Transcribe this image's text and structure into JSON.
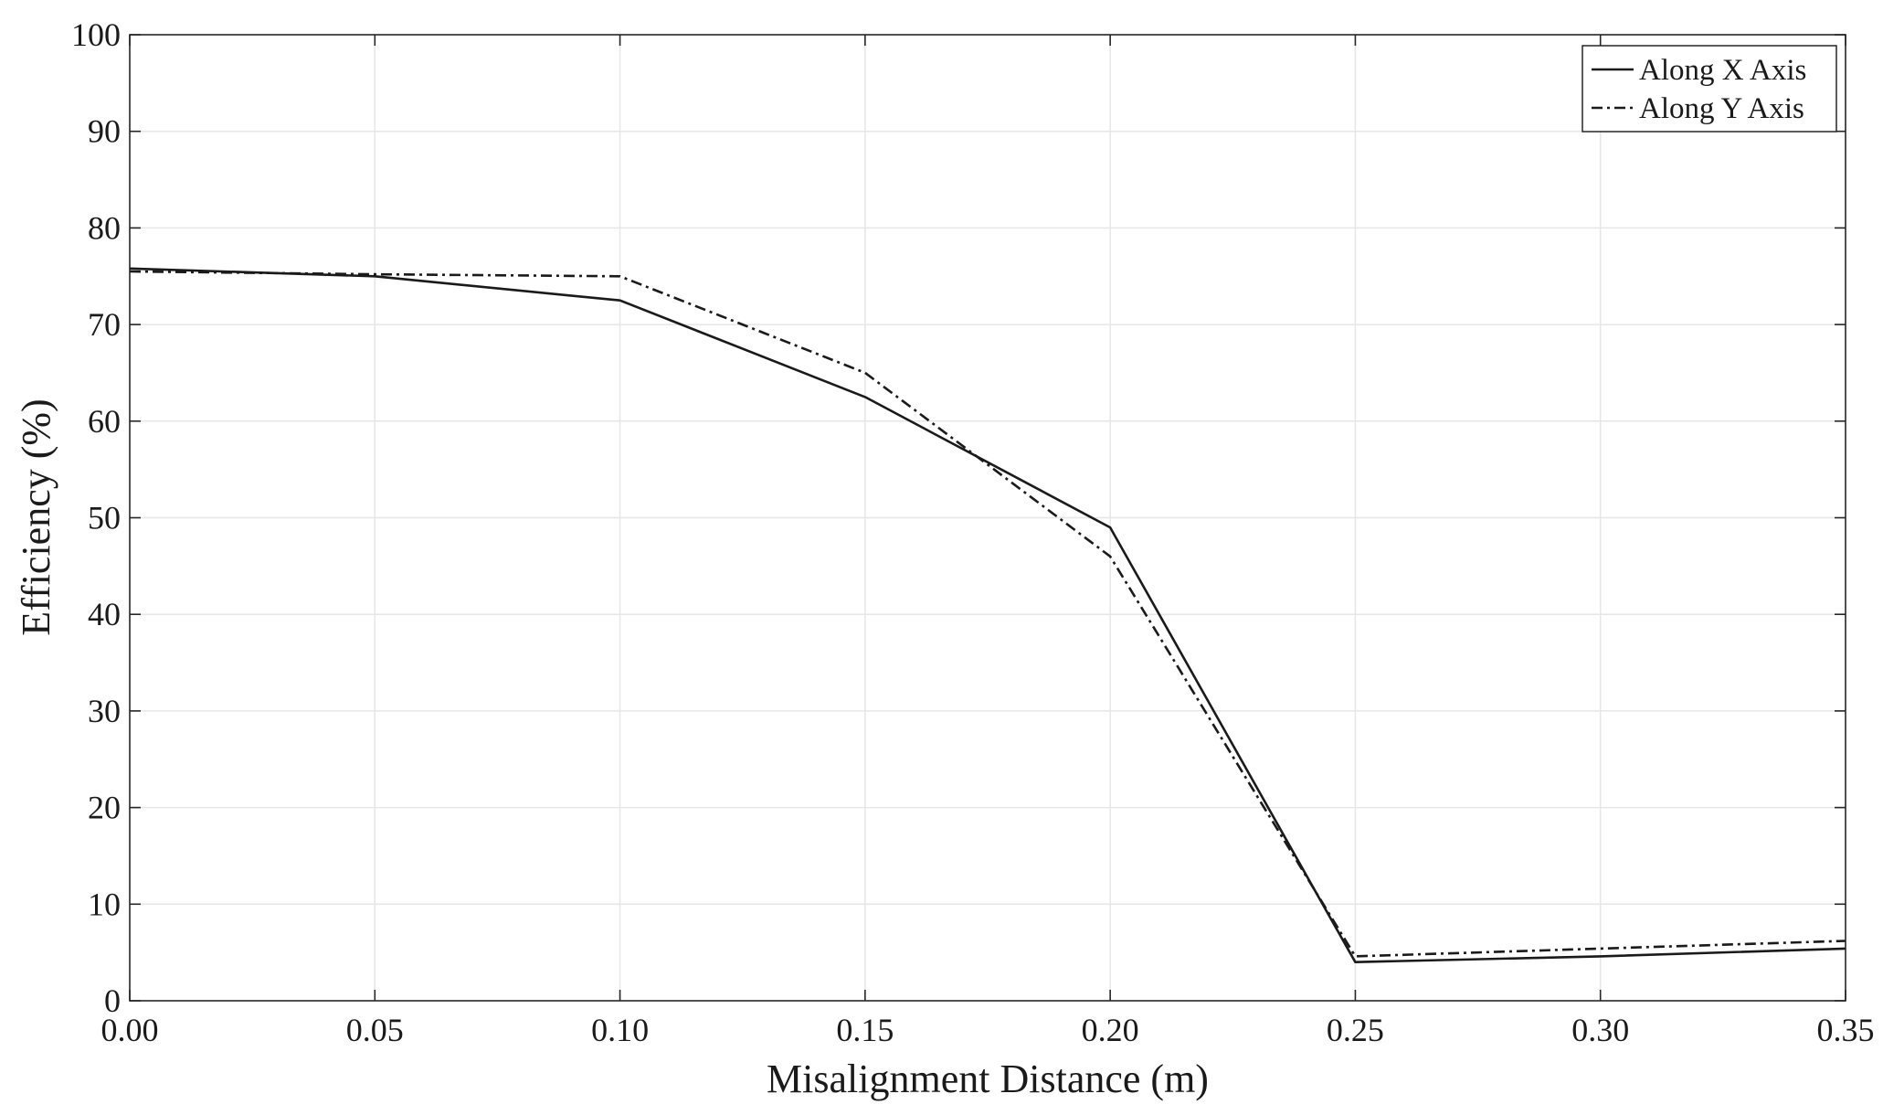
{
  "chart_data": {
    "type": "line",
    "title": "",
    "xlabel": "Misalignment Distance (m)",
    "ylabel": "Efficiency (%)",
    "xlim": [
      0,
      0.35
    ],
    "ylim": [
      0,
      100
    ],
    "grid": true,
    "legend_position": "top-right",
    "x_ticks": [
      "0.00",
      "0.05",
      "0.10",
      "0.15",
      "0.20",
      "0.25",
      "0.30",
      "0.35"
    ],
    "y_ticks": [
      "0",
      "10",
      "20",
      "30",
      "40",
      "50",
      "60",
      "70",
      "80",
      "90",
      "100"
    ],
    "x": [
      0.0,
      0.05,
      0.1,
      0.15,
      0.2,
      0.25,
      0.3,
      0.35
    ],
    "series": [
      {
        "name": "Along X Axis",
        "line_style": "solid",
        "color": "#1a1a1a",
        "values": [
          75.8,
          75.0,
          72.5,
          62.5,
          49.0,
          4.0,
          4.6,
          5.4
        ]
      },
      {
        "name": "Along Y Axis",
        "line_style": "dash-dot",
        "color": "#1a1a1a",
        "values": [
          75.5,
          75.2,
          75.0,
          65.0,
          46.0,
          4.6,
          5.4,
          6.2
        ]
      }
    ]
  }
}
